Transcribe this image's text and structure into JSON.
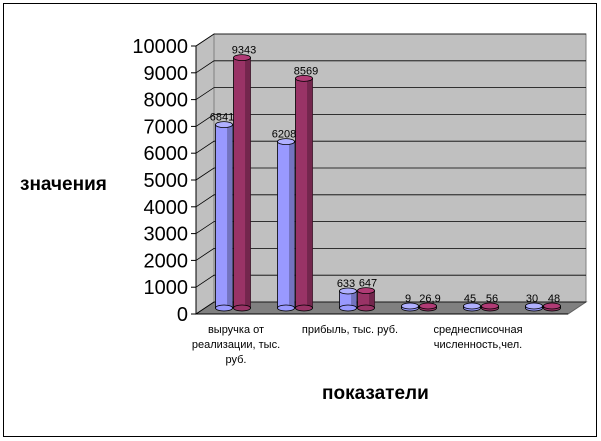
{
  "chart_data": {
    "type": "bar",
    "ylabel": "значения",
    "xlabel": "показатели",
    "ylim": [
      0,
      10000
    ],
    "yticks": [
      "0",
      "1000",
      "2000",
      "3000",
      "4000",
      "5000",
      "6000",
      "7000",
      "8000",
      "9000",
      "10000"
    ],
    "categories": [
      "выручка от реализации, тыс. руб.",
      "",
      "прибыль, тыс. руб.",
      "",
      "среднесписочная численность,чел.",
      ""
    ],
    "category_label_lines": [
      [
        "выручка от",
        "реализации, тыс.",
        "руб."
      ],
      [],
      [
        "прибыль, тыс. руб."
      ],
      [],
      [
        "среднесписочная",
        "численность,чел."
      ],
      []
    ],
    "series": [
      {
        "values": [
          6841,
          6208,
          633,
          9,
          45,
          30
        ],
        "color": "#9999ff"
      },
      {
        "values": [
          9343,
          8569,
          647,
          26.9,
          56,
          48
        ],
        "color": "#993366"
      }
    ],
    "data_labels": [
      [
        "6841",
        "6208",
        "633",
        "9",
        "45",
        "30"
      ],
      [
        "9343",
        "8569",
        "647",
        "26,9",
        "56",
        "48"
      ]
    ],
    "grid": true,
    "plot_background": "#c0c0c0",
    "floor_color": "#808080"
  }
}
